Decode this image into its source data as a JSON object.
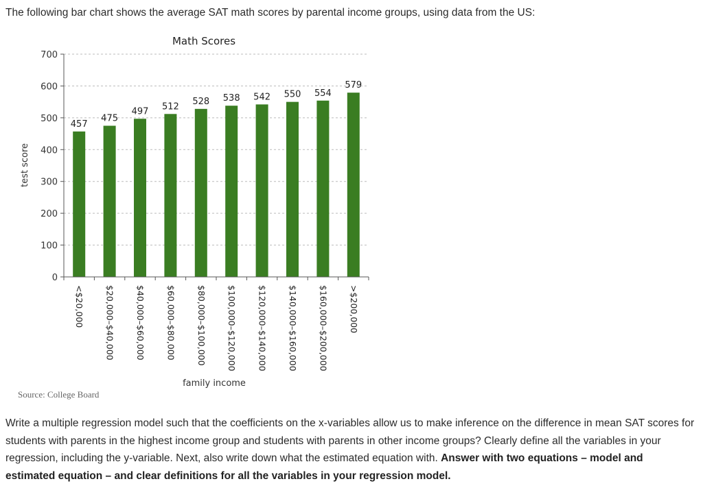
{
  "intro_text": "The following bar chart shows the average SAT math scores by parental income groups, using data from the US:",
  "source": "Source: College Board",
  "question": {
    "plain": "Write a multiple regression model such that the coefficients on the x-variables allow us to make inference on the difference in mean SAT scores for students with parents in the highest income group and students with parents in other income groups? Clearly define all the variables in your regression, including the y-variable. Next, also write down what the estimated equation with. ",
    "bold": "Answer with two equations – model and estimated equation – and clear definitions for all the variables in your regression model."
  },
  "colors": {
    "bar": "#3a7d22",
    "grid": "#bbbbbb",
    "axis": "#555555"
  },
  "chart_data": {
    "type": "bar",
    "title": "Math Scores",
    "xlabel": "family income",
    "ylabel": "test score",
    "ylim": [
      0,
      700
    ],
    "yticks": [
      0,
      100,
      200,
      300,
      400,
      500,
      600,
      700
    ],
    "grid": true,
    "categories": [
      "<$20,000",
      "$20,000–$40,000",
      "$40,000–$60,000",
      "$60,000–$80,000",
      "$80,000–$100,000",
      "$100,000–$120,000",
      "$120,000–$140,000",
      "$140,000–$160,000",
      "$160,000–$200,000",
      ">$200,000"
    ],
    "values": [
      457,
      475,
      497,
      512,
      528,
      538,
      542,
      550,
      554,
      579
    ]
  }
}
